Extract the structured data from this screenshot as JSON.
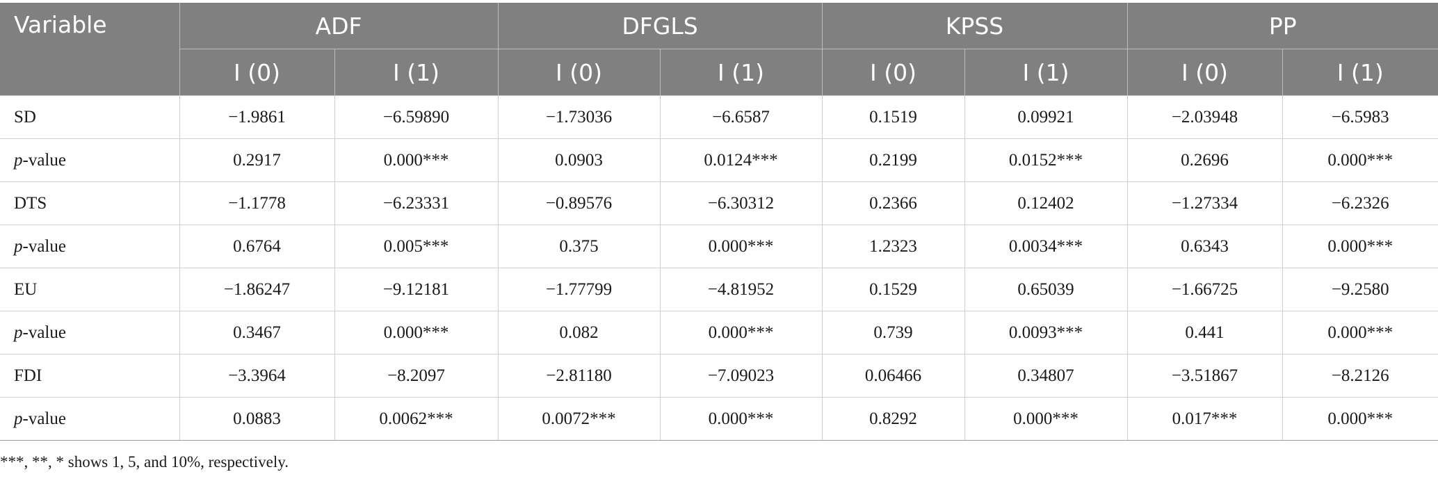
{
  "table": {
    "variable_header": "Variable",
    "groups": [
      "ADF",
      "DFGLS",
      "KPSS",
      "PP"
    ],
    "sub_headers": [
      "I (0)",
      "I (1)",
      "I (0)",
      "I (1)",
      "I (0)",
      "I (1)",
      "I (0)",
      "I (1)"
    ],
    "rows": [
      {
        "label": "SD",
        "cells": [
          "−1.9861",
          "−6.59890",
          "−1.73036",
          "−6.6587",
          "0.1519",
          "0.09921",
          "−2.03948",
          "−6.5983"
        ]
      },
      {
        "label_italic": "p",
        "label_rest": "-value",
        "cells": [
          "0.2917",
          "0.000***",
          "0.0903",
          "0.0124***",
          "0.2199",
          "0.0152***",
          "0.2696",
          "0.000***"
        ]
      },
      {
        "label": "DTS",
        "cells": [
          "−1.1778",
          "−6.23331",
          "−0.89576",
          "−6.30312",
          "0.2366",
          "0.12402",
          "−1.27334",
          "−6.2326"
        ]
      },
      {
        "label_italic": "p",
        "label_rest": "-value",
        "cells": [
          "0.6764",
          "0.005***",
          "0.375",
          "0.000***",
          "1.2323",
          "0.0034***",
          "0.6343",
          "0.000***"
        ]
      },
      {
        "label": "EU",
        "cells": [
          "−1.86247",
          "−9.12181",
          "−1.77799",
          "−4.81952",
          "0.1529",
          "0.65039",
          "−1.66725",
          "−9.2580"
        ]
      },
      {
        "label_italic": "p",
        "label_rest": "-value",
        "cells": [
          "0.3467",
          "0.000***",
          "0.082",
          "0.000***",
          "0.739",
          "0.0093***",
          "0.441",
          "0.000***"
        ]
      },
      {
        "label": "FDI",
        "cells": [
          "−3.3964",
          "−8.2097",
          "−2.81180",
          "−7.09023",
          "0.06466",
          "0.34807",
          "−3.51867",
          "−8.2126"
        ]
      },
      {
        "label_italic": "p",
        "label_rest": "-value",
        "cells": [
          "0.0883",
          "0.0062***",
          "0.0072***",
          "0.000***",
          "0.8292",
          "0.000***",
          "0.017***",
          "0.000***"
        ]
      }
    ]
  },
  "footnote": "***, **, * shows 1, 5, and 10%, respectively."
}
